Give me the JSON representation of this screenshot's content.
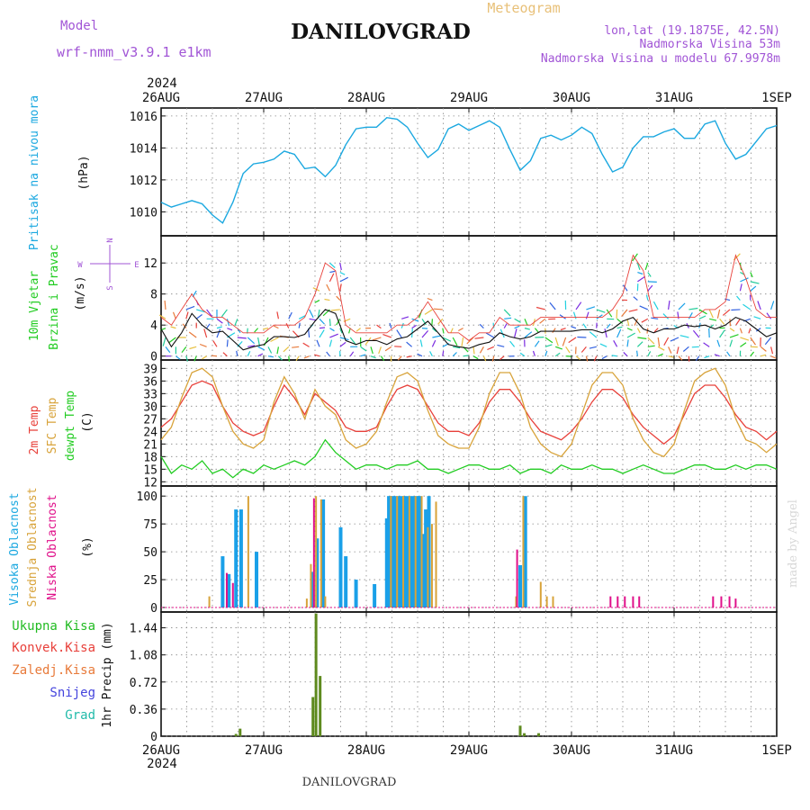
{
  "header": {
    "model_label": "Model",
    "model_value": "wrf-nmm_v3.9.1  e1km",
    "title": "DANILOVGRAD",
    "meteogram_label": "Meteogram",
    "lonlat": "lon,lat (19.1875E, 42.5N)",
    "elevation": "Nadmorska Visina 53m",
    "model_elevation": "Nadmorska Visina u modelu 67.9978m",
    "watermark": "made by Angel",
    "footer_title": "DANILOVGRAD"
  },
  "colors": {
    "pressure": "#1ba8e0",
    "temp2m": "#e8403a",
    "sfc_temp": "#d8a33a",
    "dewpoint": "#22cc22",
    "high_cloud": "#1aa0e8",
    "mid_cloud": "#d8a33a",
    "low_cloud": "#e0108a",
    "total_precip": "#5e8a1e",
    "grid": "#888888"
  },
  "chart_data": [
    {
      "panel": "pressure",
      "type": "line",
      "ylabel_colored": "Pritisak na nivou mora",
      "ylabel_unit": "(hPa)",
      "ylim": [
        1008.5,
        1016.5
      ],
      "yticks": [
        "1010",
        "1012",
        "1014",
        "1016"
      ],
      "x_days": [
        "26AUG",
        "27AUG",
        "28AUG",
        "29AUG",
        "30AUG",
        "31AUG",
        "1SEP"
      ],
      "year": "2024",
      "grid": true,
      "x": [
        0,
        0.1,
        0.2,
        0.3,
        0.4,
        0.5,
        0.6,
        0.7,
        0.8,
        0.9,
        1.0,
        1.1,
        1.2,
        1.3,
        1.4,
        1.5,
        1.6,
        1.7,
        1.8,
        1.9,
        2.0,
        2.1,
        2.2,
        2.3,
        2.4,
        2.5,
        2.6,
        2.7,
        2.8,
        2.9,
        3.0,
        3.1,
        3.2,
        3.3,
        3.4,
        3.5,
        3.6,
        3.7,
        3.8,
        3.9,
        4.0,
        4.1,
        4.2,
        4.3,
        4.4,
        4.5,
        4.6,
        4.7,
        4.8,
        4.9,
        5.0,
        5.1,
        5.2,
        5.3,
        5.4,
        5.5,
        5.6,
        5.7,
        5.8,
        5.9,
        6.0
      ],
      "y": [
        1010.6,
        1010.3,
        1010.5,
        1010.7,
        1010.5,
        1009.8,
        1009.3,
        1010.6,
        1012.4,
        1013.0,
        1013.1,
        1013.3,
        1013.8,
        1013.6,
        1012.7,
        1012.8,
        1012.2,
        1012.9,
        1014.2,
        1015.2,
        1015.3,
        1015.3,
        1015.9,
        1015.8,
        1015.3,
        1014.3,
        1013.4,
        1013.9,
        1015.2,
        1015.5,
        1015.1,
        1015.4,
        1015.7,
        1015.3,
        1013.9,
        1012.6,
        1013.2,
        1014.6,
        1014.8,
        1014.5,
        1014.8,
        1015.3,
        1014.9,
        1013.6,
        1012.5,
        1012.8,
        1014.0,
        1014.7,
        1014.7,
        1015.0,
        1015.2,
        1014.6,
        1014.6,
        1015.5,
        1015.7,
        1014.3,
        1013.3,
        1013.6,
        1014.4,
        1015.2,
        1015.4
      ]
    },
    {
      "panel": "wind",
      "type": "line",
      "ylabel_colored_1": "10m Vjetar",
      "ylabel_colored_2": "Brzina i Pravac",
      "ylabel_unit": "(m/s)",
      "compass": {
        "n": "N",
        "s": "S",
        "e": "E",
        "w": "W"
      },
      "ylim": [
        -0.5,
        15.5
      ],
      "yticks": [
        "0",
        "4",
        "8",
        "12"
      ],
      "grid": true,
      "x": [
        0,
        0.1,
        0.2,
        0.3,
        0.4,
        0.5,
        0.6,
        0.7,
        0.8,
        0.9,
        1.0,
        1.1,
        1.2,
        1.3,
        1.4,
        1.5,
        1.6,
        1.7,
        1.8,
        1.9,
        2.0,
        2.1,
        2.2,
        2.3,
        2.4,
        2.5,
        2.6,
        2.7,
        2.8,
        2.9,
        3.0,
        3.1,
        3.2,
        3.3,
        3.4,
        3.5,
        3.6,
        3.7,
        3.8,
        3.9,
        4.0,
        4.1,
        4.2,
        4.3,
        4.4,
        4.5,
        4.6,
        4.7,
        4.8,
        4.9,
        5.0,
        5.1,
        5.2,
        5.3,
        5.4,
        5.5,
        5.6,
        5.7,
        5.8,
        5.9,
        6.0
      ],
      "speed_mean": [
        3.5,
        1.2,
        3.0,
        5.5,
        4.0,
        3.0,
        3.2,
        2.0,
        0.8,
        1.2,
        1.5,
        2.5,
        2.5,
        2.4,
        2.8,
        4.5,
        6.0,
        5.5,
        2.0,
        1.5,
        2.0,
        2.0,
        1.5,
        2.2,
        2.5,
        3.5,
        4.5,
        3.0,
        1.5,
        1.2,
        1.0,
        1.5,
        1.8,
        3.0,
        2.5,
        2.2,
        2.5,
        3.2,
        3.2,
        3.2,
        3.2,
        3.4,
        3.4,
        3.0,
        3.5,
        4.5,
        5.0,
        3.5,
        3.0,
        3.5,
        3.5,
        4.0,
        3.8,
        4.0,
        3.5,
        4.0,
        5.0,
        4.5,
        3.5,
        2.5,
        3.0
      ],
      "speed_max": [
        5,
        4,
        6,
        8,
        6,
        5,
        5,
        4,
        3,
        3,
        3,
        4,
        4,
        4,
        5,
        8,
        12,
        11,
        4,
        3,
        3,
        3,
        3,
        4,
        4,
        5,
        7,
        5,
        3,
        3,
        2,
        3,
        3,
        5,
        4,
        4,
        4,
        5,
        5,
        5,
        5,
        5,
        5,
        5,
        6,
        8,
        13,
        11,
        5,
        5,
        5,
        5,
        5,
        6,
        6,
        7,
        13,
        10,
        6,
        5,
        5
      ],
      "speed_min": [
        1,
        0,
        1,
        3,
        2,
        1,
        1,
        0,
        0,
        0,
        0,
        1,
        1,
        1,
        1,
        2,
        3,
        2,
        1,
        0,
        1,
        1,
        0,
        1,
        1,
        2,
        2,
        1,
        0,
        0,
        0,
        0,
        1,
        1,
        1,
        1,
        1,
        2,
        2,
        2,
        2,
        2,
        2,
        2,
        2,
        2,
        3,
        2,
        2,
        2,
        2,
        2,
        2,
        2,
        2,
        2,
        3,
        2,
        2,
        1,
        1
      ]
    },
    {
      "panel": "temperature",
      "type": "line",
      "ylabel_colored_1": "2m Temp",
      "ylabel_colored_2": "SFC Temp",
      "ylabel_colored_3": "dewpt Temp",
      "ylabel_unit": "(C)",
      "ylim": [
        11,
        41
      ],
      "yticks": [
        "12",
        "15",
        "18",
        "21",
        "24",
        "27",
        "30",
        "33",
        "36",
        "39"
      ],
      "grid": true,
      "x": [
        0,
        0.1,
        0.2,
        0.3,
        0.4,
        0.5,
        0.6,
        0.7,
        0.8,
        0.9,
        1.0,
        1.1,
        1.2,
        1.3,
        1.4,
        1.5,
        1.6,
        1.7,
        1.8,
        1.9,
        2.0,
        2.1,
        2.2,
        2.3,
        2.4,
        2.5,
        2.6,
        2.7,
        2.8,
        2.9,
        3.0,
        3.1,
        3.2,
        3.3,
        3.4,
        3.5,
        3.6,
        3.7,
        3.8,
        3.9,
        4.0,
        4.1,
        4.2,
        4.3,
        4.4,
        4.5,
        4.6,
        4.7,
        4.8,
        4.9,
        5.0,
        5.1,
        5.2,
        5.3,
        5.4,
        5.5,
        5.6,
        5.7,
        5.8,
        5.9,
        6.0
      ],
      "series": [
        {
          "name": "2m Temp",
          "values": [
            25,
            27,
            31,
            35,
            36,
            35,
            30,
            26,
            24,
            23,
            24,
            30,
            35,
            32,
            28,
            33,
            31,
            29,
            25,
            24,
            24,
            25,
            30,
            34,
            35,
            34,
            30,
            26,
            24,
            24,
            23,
            26,
            31,
            34,
            34,
            31,
            27,
            24,
            23,
            22,
            24,
            27,
            31,
            34,
            34,
            32,
            28,
            25,
            23,
            21,
            23,
            28,
            33,
            35,
            35,
            32,
            28,
            25,
            24,
            22,
            24
          ]
        },
        {
          "name": "SFC Temp",
          "values": [
            22,
            25,
            32,
            38,
            39,
            37,
            30,
            24,
            21,
            20,
            22,
            31,
            37,
            33,
            27,
            34,
            30,
            28,
            22,
            20,
            21,
            24,
            31,
            37,
            38,
            36,
            29,
            23,
            21,
            20,
            20,
            25,
            33,
            38,
            38,
            33,
            25,
            21,
            19,
            18,
            21,
            28,
            35,
            38,
            38,
            35,
            27,
            22,
            19,
            18,
            21,
            29,
            36,
            38,
            39,
            35,
            27,
            22,
            21,
            19,
            21
          ]
        },
        {
          "name": "dewpt Temp",
          "values": [
            18,
            14,
            16,
            15,
            17,
            14,
            15,
            13,
            15,
            14,
            16,
            15,
            16,
            17,
            16,
            18,
            22,
            19,
            17,
            15,
            16,
            16,
            15,
            16,
            16,
            17,
            15,
            15,
            14,
            15,
            16,
            16,
            15,
            15,
            16,
            14,
            15,
            15,
            14,
            16,
            15,
            15,
            16,
            15,
            15,
            14,
            15,
            16,
            15,
            14,
            14,
            15,
            16,
            16,
            15,
            15,
            16,
            15,
            16,
            16,
            15
          ]
        }
      ]
    },
    {
      "panel": "clouds",
      "type": "bar",
      "ylabel_colored_1": "Visoka Oblacnost",
      "ylabel_colored_2": "Srednja Oblacnost",
      "ylabel_colored_3": "Niska Oblacnost",
      "ylabel_unit": "(%)",
      "ylim": [
        0,
        105
      ],
      "yticks": [
        "0",
        "25",
        "50",
        "75",
        "100"
      ],
      "grid": true,
      "series": [
        {
          "name": "Visoka Oblacnost",
          "x": [
            0.6,
            0.66,
            0.73,
            0.78,
            0.93,
            1.48,
            1.52,
            1.58,
            1.75,
            1.8,
            1.9,
            2.08,
            2.2,
            2.22,
            2.25,
            2.28,
            2.31,
            2.34,
            2.37,
            2.4,
            2.43,
            2.46,
            2.49,
            2.52,
            2.55,
            2.58,
            2.61,
            3.5,
            3.55
          ],
          "values": [
            46,
            30,
            88,
            88,
            50,
            32,
            62,
            97,
            72,
            46,
            25,
            21,
            80,
            100,
            100,
            100,
            100,
            100,
            100,
            100,
            100,
            100,
            100,
            100,
            66,
            88,
            100,
            38,
            100
          ]
        },
        {
          "name": "Srednja Oblacnost",
          "x": [
            0.47,
            0.85,
            1.42,
            1.46,
            1.51,
            1.56,
            1.6,
            2.24,
            2.3,
            2.36,
            2.42,
            2.48,
            2.54,
            2.6,
            2.64,
            2.68,
            3.46,
            3.53,
            3.7,
            3.76,
            3.82
          ],
          "values": [
            10,
            100,
            8,
            39,
            100,
            97,
            10,
            100,
            100,
            100,
            100,
            100,
            100,
            72,
            75,
            95,
            10,
            100,
            23,
            10,
            10
          ]
        },
        {
          "name": "Niska Oblacnost",
          "x": [
            0.64,
            0.7,
            1.49,
            3.47,
            4.38,
            4.45,
            4.52,
            4.6,
            4.66,
            5.38,
            5.46,
            5.54,
            5.6
          ],
          "values": [
            31,
            22,
            98,
            52,
            10,
            10,
            10,
            10,
            10,
            10,
            10,
            10,
            8
          ]
        }
      ]
    },
    {
      "panel": "precip",
      "type": "bar",
      "ylabel_legend": [
        "Ukupna Kisa",
        "Konvek.Kisa",
        "Zaledj.Kisa",
        "Snijeg",
        "Grad"
      ],
      "ylabel_unit": "1hr Precip (mm)",
      "ylim": [
        0,
        1.65
      ],
      "yticks": [
        "0",
        "0.36",
        "0.72",
        "1.08",
        "1.44"
      ],
      "grid": true,
      "x": [
        0.73,
        0.77,
        1.48,
        1.51,
        1.55,
        3.5,
        3.54,
        3.68
      ],
      "values": [
        0.03,
        0.1,
        0.52,
        1.63,
        0.8,
        0.14,
        0.04,
        0.04
      ]
    }
  ]
}
